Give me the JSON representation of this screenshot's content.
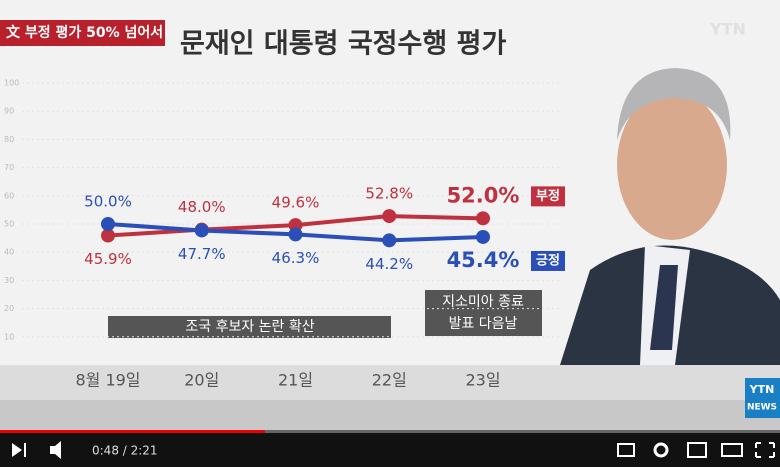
{
  "banner": "文 부정 평가 50% 넘어서",
  "logo": "YTN",
  "corner_logo": {
    "top": "YTN",
    "bottom": "NEWS"
  },
  "player": {
    "time": "0:48 / 2:21"
  },
  "chart_data": {
    "type": "line",
    "title": "문재인 대통령 국정수행 평가",
    "categories": [
      "8월 19일",
      "20일",
      "21일",
      "22일",
      "23일"
    ],
    "series": [
      {
        "name": "부정",
        "color": "#c0313f",
        "values": [
          45.9,
          48.0,
          49.6,
          52.8,
          52.0
        ],
        "value_labels": [
          "45.9%",
          "48.0%",
          "49.6%",
          "52.8%",
          "52.0%"
        ]
      },
      {
        "name": "긍정",
        "color": "#2a4fb8",
        "values": [
          50.0,
          47.7,
          46.3,
          44.2,
          45.4
        ],
        "value_labels": [
          "50.0%",
          "47.7%",
          "46.3%",
          "44.2%",
          "45.4%"
        ]
      }
    ],
    "ylim": [
      0,
      100
    ],
    "yticks": [
      10,
      20,
      30,
      40,
      50,
      60,
      70,
      80,
      90,
      100
    ],
    "grid": true,
    "annotations": [
      "조국 후보자 논란 확산",
      "지소미아 종료",
      "발표 다음날"
    ]
  }
}
